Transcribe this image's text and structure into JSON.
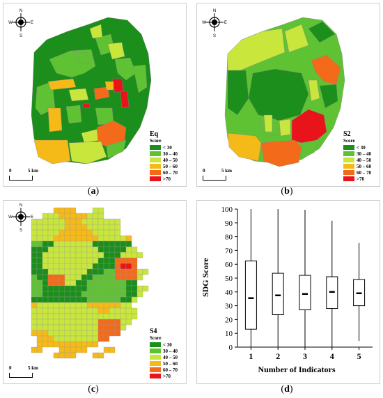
{
  "compass": {
    "n": "N",
    "s": "S",
    "e": "E",
    "w": "W"
  },
  "legend_colors": [
    "#1b8e1b",
    "#5fc232",
    "#c8e63c",
    "#f5b918",
    "#f26a1a",
    "#e8141a"
  ],
  "maps": [
    {
      "caption_open": "(",
      "caption_letter": "a",
      "caption_close": ")",
      "legend_title": "Eq",
      "legend_sub": "Score",
      "legend_items": [
        "< 30",
        "30 – 40",
        "40 – 50",
        "50 – 60",
        "60 – 70",
        ">70"
      ],
      "scale_zero": "0",
      "scale_label": "5 km"
    },
    {
      "caption_open": "(",
      "caption_letter": "b",
      "caption_close": ")",
      "legend_title": "S2",
      "legend_sub": "Score",
      "legend_items": [
        "< 30",
        "30 – 40",
        "40 – 50",
        "50 – 60",
        "60 – 70",
        ">70"
      ],
      "scale_zero": "0",
      "scale_label": "5 km"
    },
    {
      "caption_open": "(",
      "caption_letter": "c",
      "caption_close": ")",
      "legend_title": "S4",
      "legend_sub": "Score",
      "legend_items": [
        "< 30",
        "30 – 40",
        "40 – 50",
        "50 – 60",
        "60 – 70",
        ">70"
      ],
      "scale_zero": "0",
      "scale_label": "5 km"
    }
  ],
  "chart_caption": {
    "open": "(",
    "letter": "d",
    "close": ")"
  },
  "chart_data": {
    "type": "box",
    "xlabel": "Number of Indicators",
    "ylabel": "SDG Score",
    "categories": [
      "1",
      "2",
      "3",
      "4",
      "5"
    ],
    "ylim": [
      0,
      100
    ],
    "yticks": [
      0,
      10,
      20,
      30,
      40,
      50,
      60,
      70,
      80,
      90,
      100
    ],
    "boxes": [
      {
        "min": 0,
        "q1": 13,
        "median": 35.5,
        "q3": 62.5,
        "max": 100
      },
      {
        "min": 0,
        "q1": 23.5,
        "median": 37.5,
        "q3": 53.5,
        "max": 100
      },
      {
        "min": 0,
        "q1": 27,
        "median": 38.5,
        "q3": 52,
        "max": 99.5
      },
      {
        "min": 0,
        "q1": 28,
        "median": 40,
        "q3": 51,
        "max": 91.5
      },
      {
        "min": 4.5,
        "q1": 30,
        "median": 39,
        "q3": 49,
        "max": 75.5
      }
    ],
    "grid": false
  }
}
